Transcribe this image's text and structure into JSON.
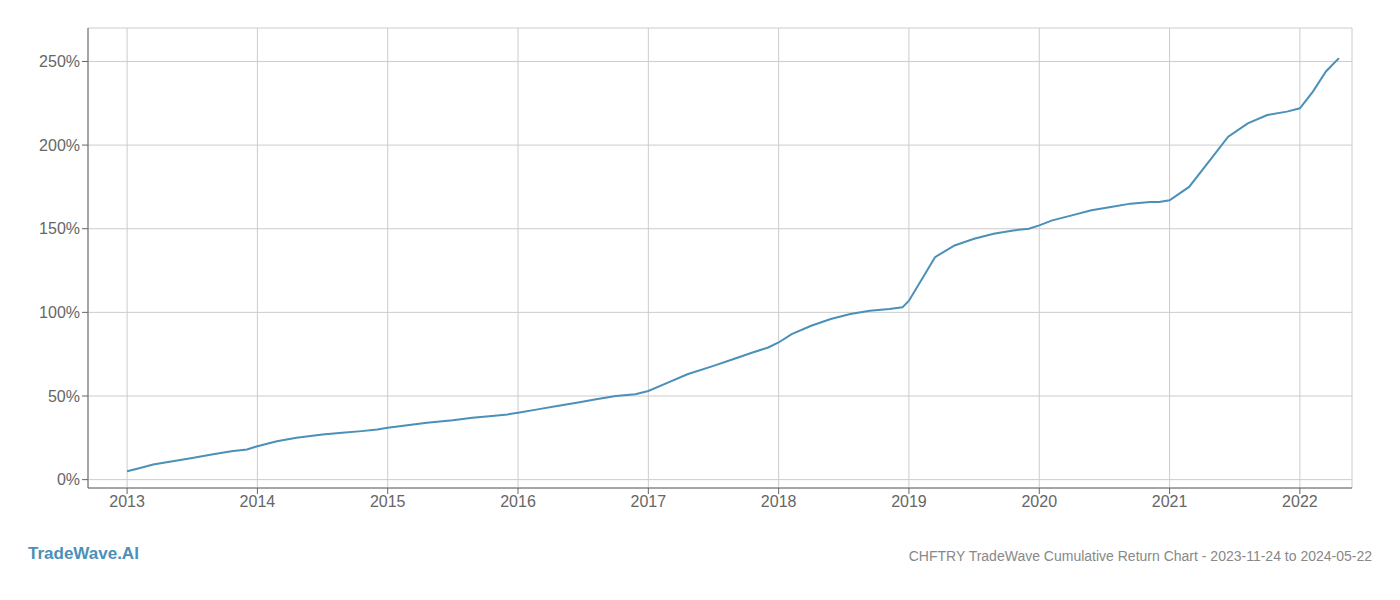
{
  "chart_data": {
    "type": "line",
    "title": "CHFTRY TradeWave Cumulative Return Chart - 2023-11-24 to 2024-05-22",
    "annotations": [
      "TradeWave.AI"
    ],
    "color": "#4a90b8",
    "grid": true,
    "xlim": [
      2012.7,
      2022.4
    ],
    "xticks": [
      2013,
      2014,
      2015,
      2016,
      2017,
      2018,
      2019,
      2020,
      2021,
      2022
    ],
    "ylim": [
      -5,
      270
    ],
    "yticks": [
      {
        "value": 0,
        "label": "0%"
      },
      {
        "value": 50,
        "label": "50%"
      },
      {
        "value": 100,
        "label": "100%"
      },
      {
        "value": 150,
        "label": "150%"
      },
      {
        "value": 200,
        "label": "200%"
      },
      {
        "value": 250,
        "label": "250%"
      }
    ],
    "x": [
      2013.0,
      2013.1,
      2013.2,
      2013.35,
      2013.5,
      2013.65,
      2013.8,
      2013.92,
      2014.0,
      2014.15,
      2014.3,
      2014.5,
      2014.65,
      2014.8,
      2014.92,
      2015.0,
      2015.15,
      2015.3,
      2015.5,
      2015.65,
      2015.8,
      2015.92,
      2016.0,
      2016.15,
      2016.3,
      2016.45,
      2016.6,
      2016.75,
      2016.9,
      2017.0,
      2017.15,
      2017.3,
      2017.5,
      2017.65,
      2017.8,
      2017.92,
      2018.0,
      2018.1,
      2018.25,
      2018.4,
      2018.55,
      2018.7,
      2018.85,
      2018.95,
      2019.0,
      2019.1,
      2019.2,
      2019.35,
      2019.5,
      2019.65,
      2019.8,
      2019.92,
      2020.0,
      2020.1,
      2020.25,
      2020.4,
      2020.55,
      2020.7,
      2020.85,
      2020.92,
      2021.0,
      2021.15,
      2021.3,
      2021.45,
      2021.6,
      2021.75,
      2021.9,
      2022.0,
      2022.1,
      2022.2,
      2022.3
    ],
    "values": [
      5,
      7,
      9,
      11,
      13,
      15,
      17,
      18,
      20,
      23,
      25,
      27,
      28,
      29,
      30,
      31,
      32.5,
      34,
      35.5,
      37,
      38,
      39,
      40,
      42,
      44,
      46,
      48,
      50,
      51,
      53,
      58,
      63,
      68,
      72,
      76,
      79,
      82,
      87,
      92,
      96,
      99,
      101,
      102,
      103,
      107,
      120,
      133,
      140,
      144,
      147,
      149,
      150,
      152,
      155,
      158,
      161,
      163,
      165,
      166,
      166,
      167,
      175,
      190,
      205,
      213,
      218,
      220,
      222,
      232,
      244,
      252
    ]
  }
}
